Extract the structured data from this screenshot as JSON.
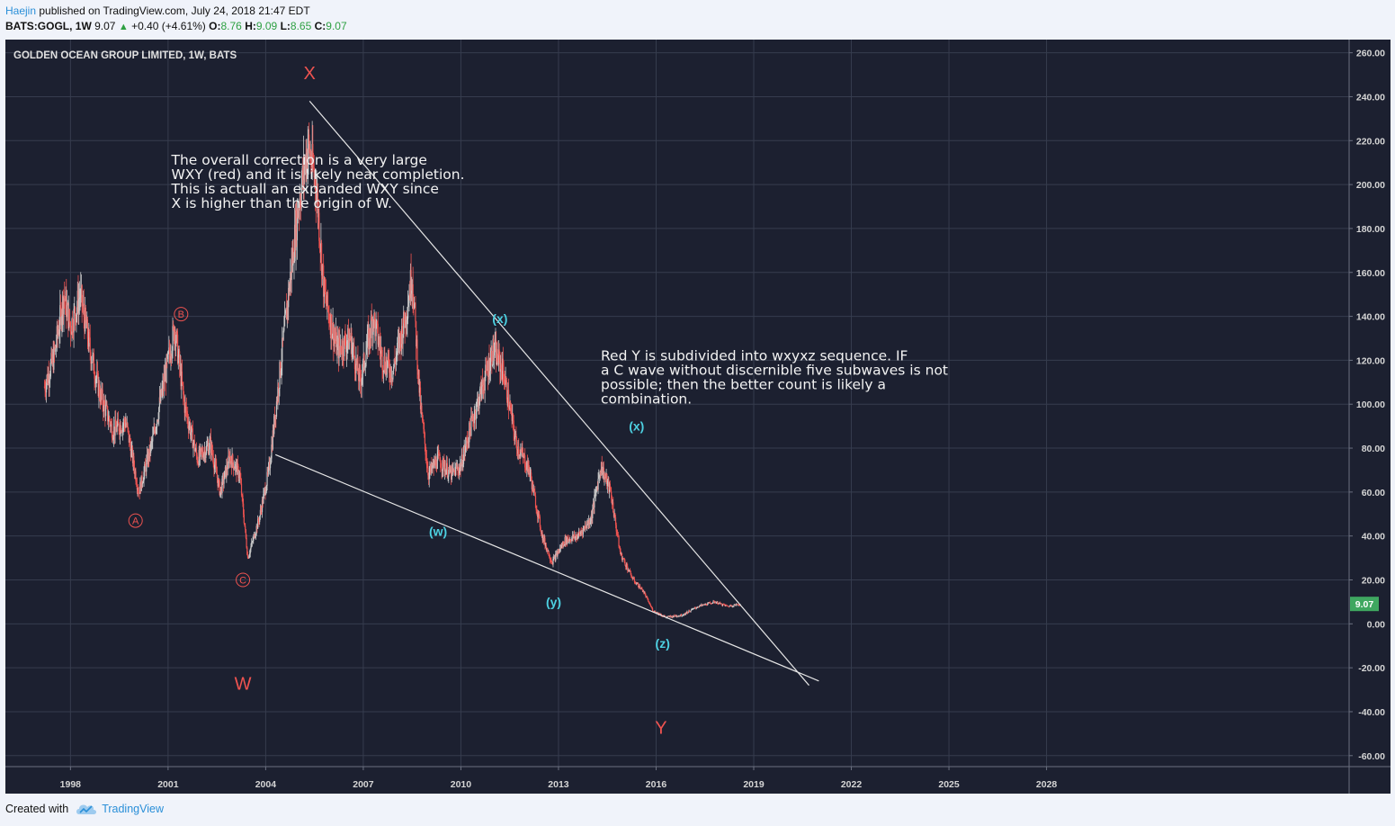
{
  "header": {
    "author": "Haejin",
    "published": "published on TradingView.com, July 24, 2018 21:47 EDT",
    "symbol": "BATS:GOGL, 1W",
    "price": "9.07",
    "change": "+0.40 (+4.61%)",
    "o_label": "O:",
    "o": "8.76",
    "h_label": "H:",
    "h": "9.09",
    "l_label": "L:",
    "l": "8.65",
    "c_label": "C:",
    "c": "9.07"
  },
  "chart_data": {
    "type": "candlestick",
    "title": "GOLDEN OCEAN GROUP LIMITED, 1W, BATS",
    "xlim": [
      1996.0,
      2037.3
    ],
    "ylim": [
      -65,
      266
    ],
    "x_ticks": [
      1998,
      2001,
      2004,
      2007,
      2010,
      2013,
      2016,
      2019,
      2022,
      2025,
      2028
    ],
    "x_tick_labels": [
      "1998",
      "2001",
      "2004",
      "2007",
      "2010",
      "2013",
      "2016",
      "2019",
      "2022",
      "2025",
      "2028"
    ],
    "y_ticks": [
      260,
      240,
      220,
      200,
      180,
      160,
      140,
      120,
      100,
      80,
      60,
      40,
      20,
      0,
      -20,
      -40,
      -60
    ],
    "y_tick_labels": [
      "260.00",
      "240.00",
      "220.00",
      "200.00",
      "180.00",
      "160.00",
      "140.00",
      "120.00",
      "100.00",
      "80.00",
      "60.00",
      "40.00",
      "20.00",
      "0.00",
      "-20.00",
      "-40.00",
      "-60.00"
    ],
    "last_price": "9.07",
    "price_path": [
      [
        1997.2,
        108
      ],
      [
        1997.5,
        122
      ],
      [
        1997.8,
        150
      ],
      [
        1998.0,
        135
      ],
      [
        1998.3,
        150
      ],
      [
        1998.6,
        125
      ],
      [
        1998.9,
        105
      ],
      [
        1999.3,
        88
      ],
      [
        1999.7,
        92
      ],
      [
        2000.1,
        60
      ],
      [
        2000.5,
        82
      ],
      [
        2000.9,
        112
      ],
      [
        2001.2,
        135
      ],
      [
        2001.5,
        100
      ],
      [
        2001.9,
        75
      ],
      [
        2002.3,
        82
      ],
      [
        2002.6,
        60
      ],
      [
        2002.9,
        76
      ],
      [
        2003.2,
        68
      ],
      [
        2003.45,
        30
      ],
      [
        2003.8,
        48
      ],
      [
        2004.1,
        70
      ],
      [
        2004.4,
        110
      ],
      [
        2004.7,
        150
      ],
      [
        2005.0,
        190
      ],
      [
        2005.3,
        218
      ],
      [
        2005.55,
        200
      ],
      [
        2005.8,
        150
      ],
      [
        2006.2,
        125
      ],
      [
        2006.6,
        130
      ],
      [
        2006.9,
        110
      ],
      [
        2007.3,
        140
      ],
      [
        2007.6,
        120
      ],
      [
        2007.9,
        115
      ],
      [
        2008.3,
        140
      ],
      [
        2008.5,
        160
      ],
      [
        2008.75,
        100
      ],
      [
        2009.0,
        68
      ],
      [
        2009.3,
        75
      ],
      [
        2009.7,
        68
      ],
      [
        2010.0,
        72
      ],
      [
        2010.3,
        90
      ],
      [
        2010.7,
        110
      ],
      [
        2011.0,
        125
      ],
      [
        2011.3,
        115
      ],
      [
        2011.7,
        82
      ],
      [
        2012.1,
        70
      ],
      [
        2012.5,
        40
      ],
      [
        2012.8,
        28
      ],
      [
        2013.2,
        38
      ],
      [
        2013.6,
        40
      ],
      [
        2014.0,
        48
      ],
      [
        2014.3,
        72
      ],
      [
        2014.6,
        60
      ],
      [
        2014.9,
        32
      ],
      [
        2015.3,
        20
      ],
      [
        2015.6,
        15
      ],
      [
        2015.9,
        6
      ],
      [
        2016.3,
        3
      ],
      [
        2016.8,
        4
      ],
      [
        2017.3,
        8
      ],
      [
        2017.8,
        10
      ],
      [
        2018.2,
        8
      ],
      [
        2018.6,
        9
      ]
    ],
    "annotations": {
      "main_waves": [
        "X",
        "W",
        "Y"
      ],
      "minor_waves": [
        "A",
        "B",
        "C"
      ],
      "sub_waves": [
        "(x)",
        "(x)",
        "(w)",
        "(y)",
        "(z)"
      ],
      "note1": [
        "The overall correction is a very large",
        "WXY (red) and it is likely near completion.",
        "This is actuall an expanded WXY since",
        "X is higher than the origin of W."
      ],
      "note2": [
        "Red Y is subdivided into wxyxz sequence. IF",
        "a C wave without discernible five subwaves is not",
        "possible; then the better count is likely a",
        "combination."
      ]
    },
    "trendlines": [
      {
        "name": "upper",
        "from": [
          2005.35,
          238
        ],
        "to": [
          2020.7,
          -28
        ]
      },
      {
        "name": "lower",
        "from": [
          2004.3,
          77
        ],
        "to": [
          2021.0,
          -26
        ]
      }
    ],
    "colors": {
      "background": "#1c2030",
      "grid": "#363c4e",
      "up": "#c9c9c9",
      "down": "#ef5350",
      "wave_red": "#ef5350",
      "wave_cyan": "#4dd0e1",
      "price_tag": "#3fa760",
      "text": "#d6d6d6"
    }
  },
  "footer": {
    "created_with": "Created with",
    "brand": "TradingView"
  }
}
